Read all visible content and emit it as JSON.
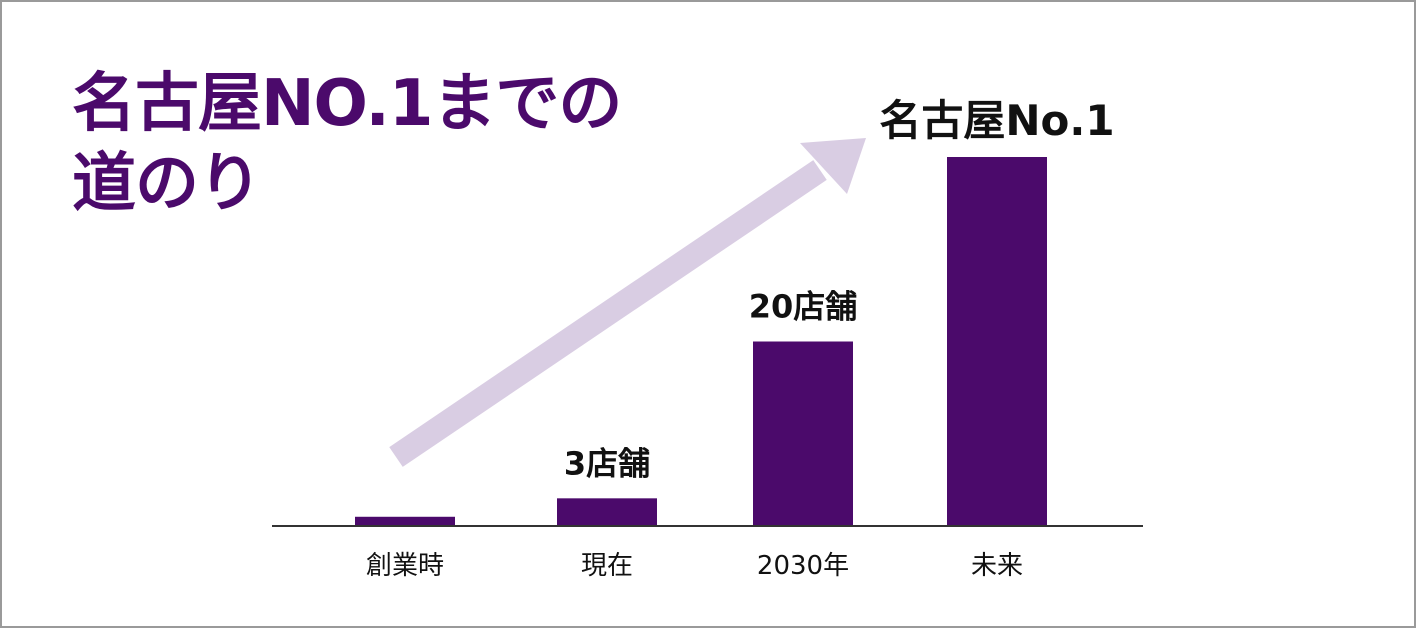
{
  "title": {
    "line1": "名古屋NO.1までの",
    "line2": "道のり"
  },
  "colors": {
    "bar": "#4b0a6b",
    "title": "#4b0a6b",
    "arrow": "#d9cde3",
    "baseline": "#333333",
    "label": "#111111"
  },
  "chart_data": {
    "type": "bar",
    "categories": [
      "創業時",
      "現在",
      "2030年",
      "未来"
    ],
    "values": [
      1,
      3,
      20,
      40
    ],
    "data_labels": [
      "",
      "3店舗",
      "20店舗",
      "名古屋No.1"
    ],
    "title": "名古屋NO.1までの道のり",
    "xlabel": "",
    "ylabel": "",
    "ylim": [
      0,
      40
    ],
    "grid": false,
    "trend_arrow": true
  }
}
